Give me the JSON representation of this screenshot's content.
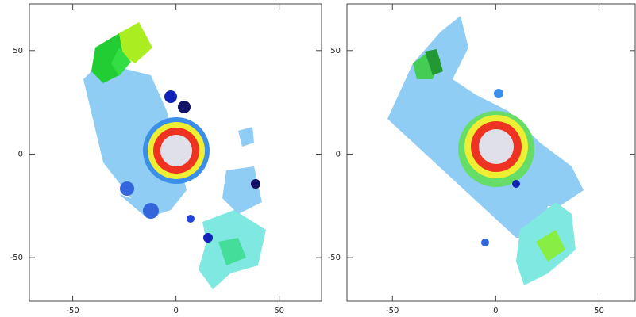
{
  "chart_data": [
    {
      "type": "map",
      "xlim": [
        -71,
        70.5
      ],
      "ylim": [
        -71,
        72.5
      ],
      "xticks": [
        -50,
        0,
        50
      ],
      "yticks": [
        -50,
        0,
        50
      ]
    },
    {
      "type": "map",
      "xlim": [
        -72,
        67.5
      ],
      "ylim": [
        -71,
        72.5
      ],
      "xticks": [
        -50,
        0,
        50
      ],
      "yticks": [
        -50,
        0,
        50
      ]
    }
  ]
}
